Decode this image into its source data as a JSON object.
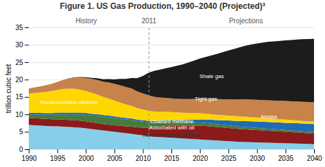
{
  "chart_data": {
    "type": "area",
    "stacked": true,
    "title": "Figure 1. US Gas Production, 1990–2040 (Projected)³",
    "ylabel": "trillion cubic feet",
    "x": [
      1990,
      1991,
      1992,
      1993,
      1994,
      1995,
      1996,
      1997,
      1998,
      1999,
      2000,
      2001,
      2002,
      2003,
      2004,
      2005,
      2006,
      2007,
      2008,
      2009,
      2010,
      2011,
      2012,
      2013,
      2014,
      2015,
      2016,
      2017,
      2018,
      2019,
      2020,
      2021,
      2022,
      2023,
      2024,
      2025,
      2026,
      2027,
      2028,
      2029,
      2030,
      2031,
      2032,
      2033,
      2034,
      2035,
      2036,
      2037,
      2038,
      2039,
      2040
    ],
    "series": [
      {
        "name": "Nonassociated onshore",
        "color": "#87CEEB",
        "values": [
          7.0,
          6.9,
          6.8,
          6.7,
          6.6,
          6.6,
          6.5,
          6.4,
          6.3,
          6.2,
          6.0,
          5.8,
          5.6,
          5.4,
          5.2,
          5.0,
          4.8,
          4.6,
          4.4,
          4.2,
          4.0,
          3.8,
          3.6,
          3.5,
          3.4,
          3.3,
          3.2,
          3.1,
          3.0,
          2.9,
          2.8,
          2.7,
          2.6,
          2.5,
          2.4,
          2.3,
          2.2,
          2.1,
          2.05,
          2.0,
          1.95,
          1.9,
          1.85,
          1.8,
          1.75,
          1.7,
          1.65,
          1.6,
          1.55,
          1.5,
          1.45
        ]
      },
      {
        "name": "Associated with oil",
        "color": "#8B1A1A",
        "values": [
          2.0,
          2.0,
          2.0,
          2.0,
          2.0,
          2.0,
          2.0,
          2.0,
          2.0,
          2.0,
          2.0,
          1.9,
          1.9,
          1.85,
          1.9,
          1.9,
          1.95,
          2.0,
          2.1,
          2.1,
          2.2,
          2.4,
          2.7,
          3.0,
          3.3,
          3.5,
          3.6,
          3.7,
          3.8,
          3.9,
          4.0,
          4.0,
          3.95,
          3.9,
          3.85,
          3.8,
          3.75,
          3.7,
          3.65,
          3.6,
          3.55,
          3.5,
          3.45,
          3.4,
          3.35,
          3.3,
          3.25,
          3.2,
          3.15,
          3.1,
          3.05
        ]
      },
      {
        "name": "Coalbed methane",
        "color": "#4A7A3A",
        "values": [
          1.0,
          1.1,
          1.15,
          1.2,
          1.3,
          1.4,
          1.5,
          1.6,
          1.7,
          1.8,
          1.9,
          2.0,
          2.1,
          2.1,
          2.1,
          2.1,
          2.0,
          1.95,
          1.9,
          1.8,
          1.7,
          1.55,
          1.4,
          1.3,
          1.2,
          1.1,
          1.05,
          1.0,
          0.95,
          0.9,
          0.85,
          0.82,
          0.8,
          0.78,
          0.76,
          0.74,
          0.72,
          0.7,
          0.68,
          0.66,
          0.64,
          0.62,
          0.6,
          0.58,
          0.56,
          0.54,
          0.52,
          0.5,
          0.48,
          0.46,
          0.44
        ]
      },
      {
        "name": "Alaska",
        "color": "#1E6BB8",
        "values": [
          0.45,
          0.46,
          0.47,
          0.48,
          0.49,
          0.5,
          0.51,
          0.52,
          0.53,
          0.52,
          0.51,
          0.5,
          0.49,
          0.48,
          0.47,
          0.46,
          0.45,
          0.44,
          0.43,
          0.42,
          0.42,
          0.42,
          0.43,
          0.44,
          0.46,
          0.48,
          0.52,
          0.58,
          0.65,
          0.75,
          0.88,
          1.0,
          1.1,
          1.2,
          1.3,
          1.4,
          1.5,
          1.6,
          1.7,
          1.75,
          1.8,
          1.85,
          1.9,
          1.95,
          2.0,
          2.05,
          2.1,
          2.15,
          2.2,
          2.25,
          2.3
        ]
      },
      {
        "name": "Nonassociated offshore",
        "color": "#FFD700",
        "values": [
          5.5,
          5.7,
          5.9,
          6.1,
          6.3,
          6.5,
          6.8,
          6.9,
          6.8,
          6.6,
          6.3,
          6.0,
          5.6,
          5.2,
          4.9,
          4.5,
          4.2,
          3.9,
          3.6,
          3.3,
          3.1,
          2.9,
          2.7,
          2.5,
          2.4,
          2.3,
          2.2,
          2.1,
          2.0,
          1.9,
          1.8,
          1.7,
          1.6,
          1.5,
          1.45,
          1.4,
          1.35,
          1.3,
          1.25,
          1.2,
          1.15,
          1.1,
          1.05,
          1.0,
          0.95,
          0.9,
          0.85,
          0.8,
          0.75,
          0.7,
          0.65
        ]
      },
      {
        "name": "Tight gas",
        "color": "#C8834A",
        "values": [
          1.5,
          1.6,
          1.7,
          1.9,
          2.1,
          2.3,
          2.6,
          2.9,
          3.2,
          3.5,
          3.8,
          4.0,
          4.2,
          4.4,
          4.6,
          4.8,
          5.0,
          5.0,
          5.0,
          4.8,
          4.6,
          4.4,
          4.2,
          4.1,
          4.0,
          3.9,
          3.9,
          3.9,
          4.0,
          4.1,
          4.2,
          4.3,
          4.4,
          4.5,
          4.6,
          4.7,
          4.8,
          4.9,
          5.0,
          5.05,
          5.1,
          5.15,
          5.2,
          5.25,
          5.3,
          5.35,
          5.4,
          5.45,
          5.5,
          5.55,
          5.6
        ]
      },
      {
        "name": "Shale gas",
        "color": "#1C1C1C",
        "values": [
          0.0,
          0.0,
          0.0,
          0.0,
          0.0,
          0.0,
          0.0,
          0.05,
          0.1,
          0.1,
          0.2,
          0.3,
          0.5,
          0.7,
          1.0,
          1.3,
          1.8,
          2.3,
          3.0,
          3.8,
          5.0,
          6.5,
          7.5,
          8.0,
          8.5,
          9.0,
          9.5,
          10.0,
          10.5,
          11.0,
          11.5,
          12.0,
          12.5,
          13.0,
          13.5,
          14.0,
          14.5,
          15.0,
          15.4,
          15.8,
          16.2,
          16.5,
          16.8,
          17.0,
          17.2,
          17.4,
          17.6,
          17.8,
          18.0,
          18.1,
          18.2
        ]
      }
    ],
    "xlim": [
      1990,
      2040
    ],
    "xticks": [
      1990,
      1995,
      2000,
      2005,
      2010,
      2015,
      2020,
      2025,
      2030,
      2035,
      2040
    ],
    "ylim": [
      0,
      35
    ],
    "yticks": [
      0,
      5,
      10,
      15,
      20,
      25,
      30,
      35
    ],
    "grid": "y",
    "vline": 2011,
    "annotations": [
      {
        "text": "History",
        "x": 2000,
        "y": 36.5,
        "color": "#555555"
      },
      {
        "text": "2011",
        "x": 2011,
        "y": 36.5,
        "color": "#555555"
      },
      {
        "text": "Projections",
        "x": 2028,
        "y": 36.5,
        "color": "#555555"
      },
      {
        "text": "Shale gas",
        "x": 2022,
        "y": 21.0,
        "color": "white"
      },
      {
        "text": "Tight gas",
        "x": 2021,
        "y": 14.5,
        "color": "white"
      },
      {
        "text": "Alaska",
        "x": 2032,
        "y": 9.5,
        "color": "white"
      },
      {
        "text": "Nonassociated offshore",
        "x": 1997,
        "y": 13.5,
        "color": "white"
      },
      {
        "text": "Coalbed methane",
        "x": 2015,
        "y": 8.0,
        "color": "white"
      },
      {
        "text": "Associated with oil",
        "x": 2015,
        "y": 6.3,
        "color": "white"
      },
      {
        "text": "Nonassociated onshore",
        "x": 2015,
        "y": 4.2,
        "color": "#333333"
      }
    ]
  }
}
